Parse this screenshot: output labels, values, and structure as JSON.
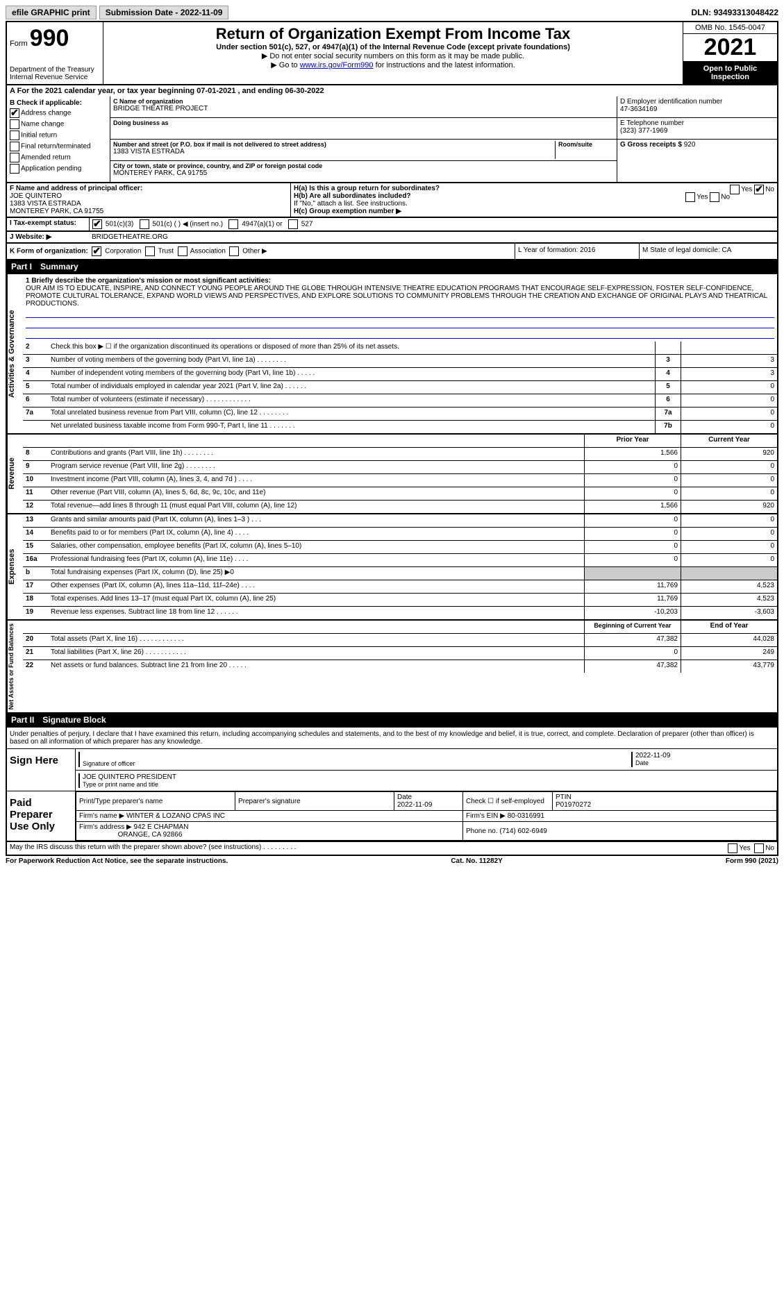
{
  "topbar": {
    "efile": "efile GRAPHIC print",
    "submission": "Submission Date - 2022-11-09",
    "dln_label": "DLN:",
    "dln": "93493313048422"
  },
  "header": {
    "form_prefix": "Form",
    "form_num": "990",
    "dept": "Department of the Treasury",
    "irs": "Internal Revenue Service",
    "title": "Return of Organization Exempt From Income Tax",
    "sub1": "Under section 501(c), 527, or 4947(a)(1) of the Internal Revenue Code (except private foundations)",
    "sub2": "▶ Do not enter social security numbers on this form as it may be made public.",
    "sub3_pre": "▶ Go to ",
    "sub3_link": "www.irs.gov/Form990",
    "sub3_post": " for instructions and the latest information.",
    "omb": "OMB No. 1545-0047",
    "year": "2021",
    "open": "Open to Public Inspection"
  },
  "rowA": "A For the 2021 calendar year, or tax year beginning 07-01-2021     , and ending 06-30-2022",
  "colB": {
    "hdr": "B Check if applicable:",
    "items": [
      {
        "label": "Address change",
        "checked": true
      },
      {
        "label": "Name change",
        "checked": false
      },
      {
        "label": "Initial return",
        "checked": false
      },
      {
        "label": "Final return/terminated",
        "checked": false
      },
      {
        "label": "Amended return",
        "checked": false
      },
      {
        "label": "Application pending",
        "checked": false
      }
    ]
  },
  "colC": {
    "name_label": "C Name of organization",
    "name": "BRIDGE THEATRE PROJECT",
    "dba_label": "Doing business as",
    "dba": "",
    "addr_label": "Number and street (or P.O. box if mail is not delivered to street address)",
    "room_label": "Room/suite",
    "addr": "1383 VISTA ESTRADA",
    "city_label": "City or town, state or province, country, and ZIP or foreign postal code",
    "city": "MONTEREY PARK, CA  91755"
  },
  "colD": {
    "ein_label": "D Employer identification number",
    "ein": "47-3634169",
    "tel_label": "E Telephone number",
    "tel": "(323) 377-1969",
    "gross_label": "G Gross receipts $",
    "gross": "920"
  },
  "sectionF": {
    "label": "F Name and address of principal officer:",
    "name": "JOE QUINTERO",
    "addr1": "1383 VISTA ESTRADA",
    "addr2": "MONTEREY PARK, CA  91755"
  },
  "sectionH": {
    "ha": "H(a)  Is this a group return for subordinates?",
    "ha_yes": "Yes",
    "ha_no": "No",
    "ha_val": "No",
    "hb": "H(b)  Are all subordinates included?",
    "hb_note": "If \"No,\" attach a list. See instructions.",
    "hc": "H(c)  Group exemption number ▶"
  },
  "rowI": {
    "label": "I  Tax-exempt status:",
    "c501c3": "501(c)(3)",
    "c501c": "501(c) (   ) ◀ (insert no.)",
    "c4947": "4947(a)(1) or",
    "c527": "527"
  },
  "rowJ": {
    "label": "J  Website: ▶",
    "value": "BRIDGETHEATRE.ORG"
  },
  "rowK": {
    "label": "K Form of organization:",
    "corp": "Corporation",
    "trust": "Trust",
    "assoc": "Association",
    "other": "Other ▶",
    "L": "L Year of formation: 2016",
    "M": "M State of legal domicile: CA"
  },
  "part1": {
    "num": "Part I",
    "title": "Summary"
  },
  "mission": {
    "label": "1  Briefly describe the organization's mission or most significant activities:",
    "text": "OUR AIM IS TO EDUCATE, INSPIRE, AND CONNECT YOUNG PEOPLE AROUND THE GLOBE THROUGH INTENSIVE THEATRE EDUCATION PROGRAMS THAT ENCOURAGE SELF-EXPRESSION, FOSTER SELF-CONFIDENCE, PROMOTE CULTURAL TOLERANCE, EXPAND WORLD VIEWS AND PERSPECTIVES, AND EXPLORE SOLUTIONS TO COMMUNITY PROBLEMS THROUGH THE CREATION AND EXCHANGE OF ORIGINAL PLAYS AND THEATRICAL PRODUCTIONS."
  },
  "gov_rows": [
    {
      "n": "2",
      "d": "Check this box ▶ ☐  if the organization discontinued its operations or disposed of more than 25% of its net assets.",
      "cn": "",
      "v": ""
    },
    {
      "n": "3",
      "d": "Number of voting members of the governing body (Part VI, line 1a)   .   .   .   .   .   .   .   .",
      "cn": "3",
      "v": "3"
    },
    {
      "n": "4",
      "d": "Number of independent voting members of the governing body (Part VI, line 1b)    .   .   .   .   .",
      "cn": "4",
      "v": "3"
    },
    {
      "n": "5",
      "d": "Total number of individuals employed in calendar year 2021 (Part V, line 2a)    .   .   .   .   .   .",
      "cn": "5",
      "v": "0"
    },
    {
      "n": "6",
      "d": "Total number of volunteers (estimate if necessary)   .   .   .   .   .   .   .   .   .   .   .   .",
      "cn": "6",
      "v": "0"
    },
    {
      "n": "7a",
      "d": "Total unrelated business revenue from Part VIII, column (C), line 12   .   .   .   .   .   .   .   .",
      "cn": "7a",
      "v": "0"
    },
    {
      "n": "",
      "d": "Net unrelated business taxable income from Form 990-T, Part I, line 11    .   .   .   .   .   .   .",
      "cn": "7b",
      "v": "0"
    }
  ],
  "rev_hdr": {
    "prior": "Prior Year",
    "current": "Current Year"
  },
  "rev_rows": [
    {
      "n": "8",
      "d": "Contributions and grants (Part VIII, line 1h)   .   .   .   .   .   .   .   .",
      "p": "1,566",
      "c": "920"
    },
    {
      "n": "9",
      "d": "Program service revenue (Part VIII, line 2g)   .   .   .   .   .   .   .   .",
      "p": "0",
      "c": "0"
    },
    {
      "n": "10",
      "d": "Investment income (Part VIII, column (A), lines 3, 4, and 7d )   .   .   .   .",
      "p": "0",
      "c": "0"
    },
    {
      "n": "11",
      "d": "Other revenue (Part VIII, column (A), lines 5, 6d, 8c, 9c, 10c, and 11e)",
      "p": "0",
      "c": "0"
    },
    {
      "n": "12",
      "d": "Total revenue—add lines 8 through 11 (must equal Part VIII, column (A), line 12)",
      "p": "1,566",
      "c": "920"
    }
  ],
  "exp_rows": [
    {
      "n": "13",
      "d": "Grants and similar amounts paid (Part IX, column (A), lines 1–3 )  .   .   .",
      "p": "0",
      "c": "0"
    },
    {
      "n": "14",
      "d": "Benefits paid to or for members (Part IX, column (A), line 4)  .   .   .   .",
      "p": "0",
      "c": "0"
    },
    {
      "n": "15",
      "d": "Salaries, other compensation, employee benefits (Part IX, column (A), lines 5–10)",
      "p": "0",
      "c": "0"
    },
    {
      "n": "16a",
      "d": "Professional fundraising fees (Part IX, column (A), line 11e)   .   .   .   .",
      "p": "0",
      "c": "0"
    },
    {
      "n": "b",
      "d": "Total fundraising expenses (Part IX, column (D), line 25) ▶0",
      "p": "",
      "c": "",
      "grey": true
    },
    {
      "n": "17",
      "d": "Other expenses (Part IX, column (A), lines 11a–11d, 11f–24e)   .   .   .   .",
      "p": "11,769",
      "c": "4,523"
    },
    {
      "n": "18",
      "d": "Total expenses. Add lines 13–17 (must equal Part IX, column (A), line 25)",
      "p": "11,769",
      "c": "4,523"
    },
    {
      "n": "19",
      "d": "Revenue less expenses. Subtract line 18 from line 12  .   .   .   .   .   .",
      "p": "-10,203",
      "c": "-3,603"
    }
  ],
  "na_hdr": {
    "prior": "Beginning of Current Year",
    "current": "End of Year"
  },
  "na_rows": [
    {
      "n": "20",
      "d": "Total assets (Part X, line 16)  .   .   .   .   .   .   .   .   .   .   .   .",
      "p": "47,382",
      "c": "44,028"
    },
    {
      "n": "21",
      "d": "Total liabilities (Part X, line 26)  .   .   .   .   .   .   .   .   .   .   .",
      "p": "0",
      "c": "249"
    },
    {
      "n": "22",
      "d": "Net assets or fund balances. Subtract line 21 from line 20   .   .   .   .   .",
      "p": "47,382",
      "c": "43,779"
    }
  ],
  "vtabs": {
    "gov": "Activities & Governance",
    "rev": "Revenue",
    "exp": "Expenses",
    "na": "Net Assets or Fund Balances"
  },
  "part2": {
    "num": "Part II",
    "title": "Signature Block"
  },
  "penalties": "Under penalties of perjury, I declare that I have examined this return, including accompanying schedules and statements, and to the best of my knowledge and belief, it is true, correct, and complete. Declaration of preparer (other than officer) is based on all information of which preparer has any knowledge.",
  "sign": {
    "here": "Sign Here",
    "sig_label": "Signature of officer",
    "date": "2022-11-09",
    "date_label": "Date",
    "name": "JOE QUINTERO PRESIDENT",
    "name_label": "Type or print name and title"
  },
  "paid": {
    "hdr": "Paid Preparer Use Only",
    "r1": {
      "a": "Print/Type preparer's name",
      "b": "Preparer's signature",
      "c": "Date",
      "cval": "2022-11-09",
      "d": "Check ☐ if self-employed",
      "e": "PTIN",
      "eval": "P01970272"
    },
    "r2": {
      "a": "Firm's name    ▶",
      "aval": "WINTER & LOZANO CPAS INC",
      "b": "Firm's EIN ▶",
      "bval": "80-0316991"
    },
    "r3": {
      "a": "Firm's address ▶",
      "aval": "942 E CHAPMAN",
      "aval2": "ORANGE, CA  92866",
      "b": "Phone no.",
      "bval": "(714) 602-6949"
    }
  },
  "discuss": {
    "q": "May the IRS discuss this return with the preparer shown above? (see instructions)   .   .   .   .   .   .   .   .   .",
    "yes": "Yes",
    "no": "No"
  },
  "footer": {
    "a": "For Paperwork Reduction Act Notice, see the separate instructions.",
    "b": "Cat. No. 11282Y",
    "c": "Form 990 (2021)"
  }
}
